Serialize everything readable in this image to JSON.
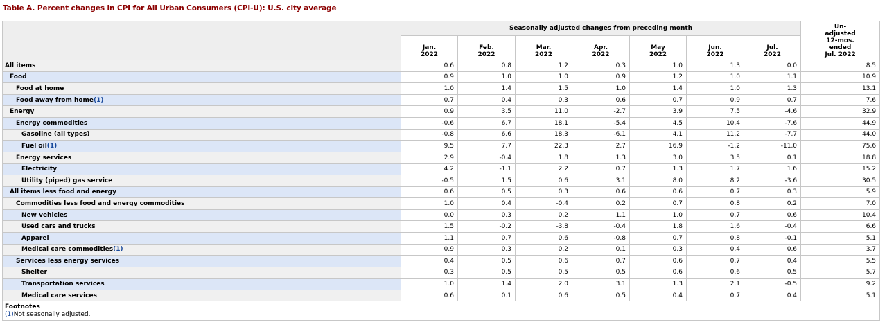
{
  "title": "Table A. Percent changes in CPI for All Urban Consumers (CPI-U): U.S. city average",
  "header": {
    "group_label": "Seasonally adjusted changes from preceding month",
    "months": [
      {
        "m": "Jan.",
        "y": "2022"
      },
      {
        "m": "Feb.",
        "y": "2022"
      },
      {
        "m": "Mar.",
        "y": "2022"
      },
      {
        "m": "Apr.",
        "y": "2022"
      },
      {
        "m": "May",
        "y": "2022"
      },
      {
        "m": "Jun.",
        "y": "2022"
      },
      {
        "m": "Jul.",
        "y": "2022"
      }
    ],
    "unadjusted_lines": [
      "Un-",
      "adjusted",
      "12-mos.",
      "ended",
      "Jul. 2022"
    ]
  },
  "rows": [
    {
      "label": "All items",
      "indent": 0,
      "alt": false,
      "footnote": "",
      "values": [
        "0.6",
        "0.8",
        "1.2",
        "0.3",
        "1.0",
        "1.3",
        "0.0",
        "8.5"
      ]
    },
    {
      "label": "Food",
      "indent": 1,
      "alt": true,
      "footnote": "",
      "values": [
        "0.9",
        "1.0",
        "1.0",
        "0.9",
        "1.2",
        "1.0",
        "1.1",
        "10.9"
      ]
    },
    {
      "label": "Food at home",
      "indent": 2,
      "alt": false,
      "footnote": "",
      "values": [
        "1.0",
        "1.4",
        "1.5",
        "1.0",
        "1.4",
        "1.0",
        "1.3",
        "13.1"
      ]
    },
    {
      "label": "Food away from home",
      "indent": 2,
      "alt": true,
      "footnote": "(1)",
      "values": [
        "0.7",
        "0.4",
        "0.3",
        "0.6",
        "0.7",
        "0.9",
        "0.7",
        "7.6"
      ]
    },
    {
      "label": "Energy",
      "indent": 1,
      "alt": false,
      "footnote": "",
      "values": [
        "0.9",
        "3.5",
        "11.0",
        "-2.7",
        "3.9",
        "7.5",
        "-4.6",
        "32.9"
      ]
    },
    {
      "label": "Energy commodities",
      "indent": 2,
      "alt": true,
      "footnote": "",
      "values": [
        "-0.6",
        "6.7",
        "18.1",
        "-5.4",
        "4.5",
        "10.4",
        "-7.6",
        "44.9"
      ]
    },
    {
      "label": "Gasoline (all types)",
      "indent": 3,
      "alt": false,
      "footnote": "",
      "values": [
        "-0.8",
        "6.6",
        "18.3",
        "-6.1",
        "4.1",
        "11.2",
        "-7.7",
        "44.0"
      ]
    },
    {
      "label": "Fuel oil",
      "indent": 3,
      "alt": true,
      "footnote": "(1)",
      "values": [
        "9.5",
        "7.7",
        "22.3",
        "2.7",
        "16.9",
        "-1.2",
        "-11.0",
        "75.6"
      ]
    },
    {
      "label": "Energy services",
      "indent": 2,
      "alt": false,
      "footnote": "",
      "values": [
        "2.9",
        "-0.4",
        "1.8",
        "1.3",
        "3.0",
        "3.5",
        "0.1",
        "18.8"
      ]
    },
    {
      "label": "Electricity",
      "indent": 3,
      "alt": true,
      "footnote": "",
      "values": [
        "4.2",
        "-1.1",
        "2.2",
        "0.7",
        "1.3",
        "1.7",
        "1.6",
        "15.2"
      ]
    },
    {
      "label": "Utility (piped) gas service",
      "indent": 3,
      "alt": false,
      "footnote": "",
      "values": [
        "-0.5",
        "1.5",
        "0.6",
        "3.1",
        "8.0",
        "8.2",
        "-3.6",
        "30.5"
      ]
    },
    {
      "label": "All items less food and energy",
      "indent": 1,
      "alt": true,
      "footnote": "",
      "values": [
        "0.6",
        "0.5",
        "0.3",
        "0.6",
        "0.6",
        "0.7",
        "0.3",
        "5.9"
      ]
    },
    {
      "label": "Commodities less food and energy commodities",
      "indent": 2,
      "alt": false,
      "footnote": "",
      "values": [
        "1.0",
        "0.4",
        "-0.4",
        "0.2",
        "0.7",
        "0.8",
        "0.2",
        "7.0"
      ]
    },
    {
      "label": "New vehicles",
      "indent": 3,
      "alt": true,
      "footnote": "",
      "values": [
        "0.0",
        "0.3",
        "0.2",
        "1.1",
        "1.0",
        "0.7",
        "0.6",
        "10.4"
      ]
    },
    {
      "label": "Used cars and trucks",
      "indent": 3,
      "alt": false,
      "footnote": "",
      "values": [
        "1.5",
        "-0.2",
        "-3.8",
        "-0.4",
        "1.8",
        "1.6",
        "-0.4",
        "6.6"
      ]
    },
    {
      "label": "Apparel",
      "indent": 3,
      "alt": true,
      "footnote": "",
      "values": [
        "1.1",
        "0.7",
        "0.6",
        "-0.8",
        "0.7",
        "0.8",
        "-0.1",
        "5.1"
      ]
    },
    {
      "label": "Medical care commodities",
      "indent": 3,
      "alt": false,
      "footnote": "(1)",
      "values": [
        "0.9",
        "0.3",
        "0.2",
        "0.1",
        "0.3",
        "0.4",
        "0.6",
        "3.7"
      ]
    },
    {
      "label": "Services less energy services",
      "indent": 2,
      "alt": true,
      "footnote": "",
      "values": [
        "0.4",
        "0.5",
        "0.6",
        "0.7",
        "0.6",
        "0.7",
        "0.4",
        "5.5"
      ]
    },
    {
      "label": "Shelter",
      "indent": 3,
      "alt": false,
      "footnote": "",
      "values": [
        "0.3",
        "0.5",
        "0.5",
        "0.5",
        "0.6",
        "0.6",
        "0.5",
        "5.7"
      ]
    },
    {
      "label": "Transportation services",
      "indent": 3,
      "alt": true,
      "footnote": "",
      "values": [
        "1.0",
        "1.4",
        "2.0",
        "3.1",
        "1.3",
        "2.1",
        "-0.5",
        "9.2"
      ]
    },
    {
      "label": "Medical care services",
      "indent": 3,
      "alt": false,
      "footnote": "",
      "values": [
        "0.6",
        "0.1",
        "0.6",
        "0.5",
        "0.4",
        "0.7",
        "0.4",
        "5.1"
      ]
    }
  ],
  "footnotes": {
    "heading": "Footnotes",
    "items": [
      {
        "marker": "(1)",
        "text": "Not seasonally adjusted."
      }
    ]
  }
}
